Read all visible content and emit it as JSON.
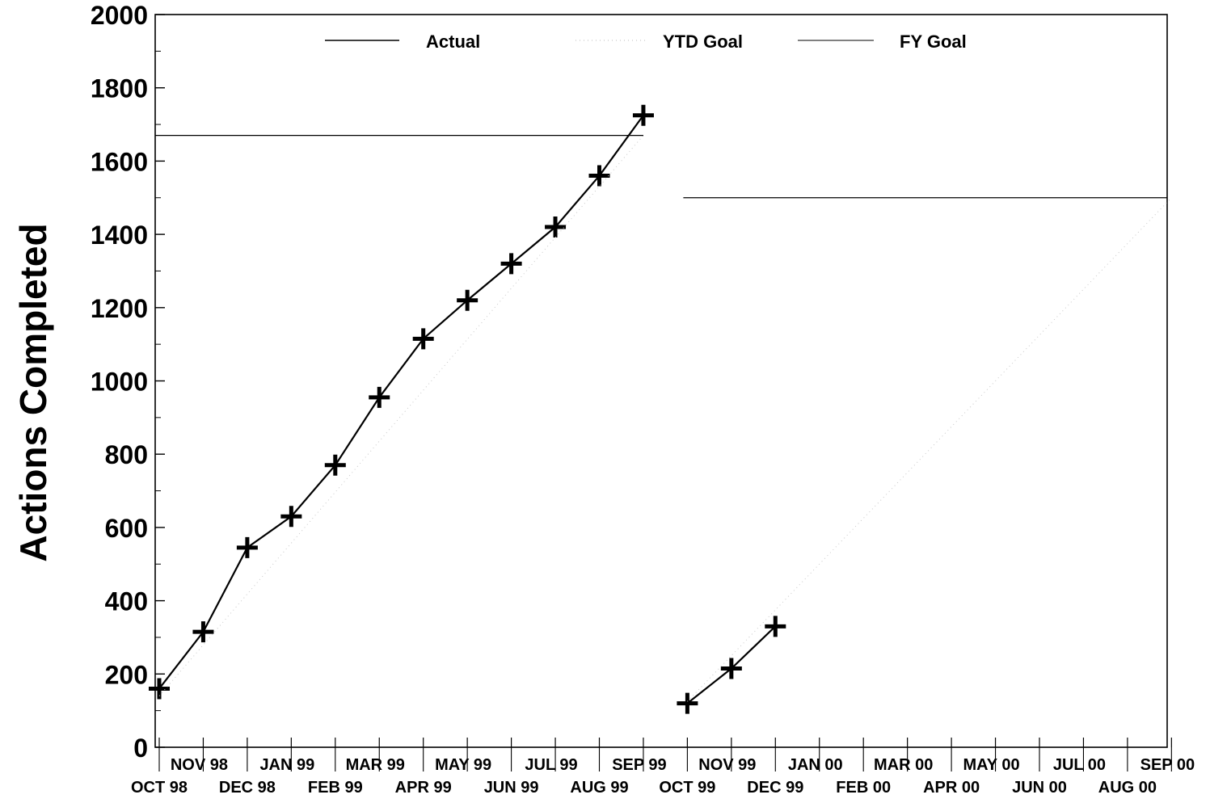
{
  "chart_data": {
    "type": "line",
    "xlabel": "",
    "ylabel": "Actions Completed",
    "ylim": [
      0,
      2000
    ],
    "yticks": [
      0,
      200,
      400,
      600,
      800,
      1000,
      1200,
      1400,
      1600,
      1800,
      2000
    ],
    "categories": [
      "OCT 98",
      "NOV 98",
      "DEC 98",
      "JAN 99",
      "FEB 99",
      "MAR 99",
      "APR 99",
      "MAY 99",
      "JUN 99",
      "JUL 99",
      "AUG 99",
      "SEP 99",
      "OCT 99",
      "NOV 99",
      "DEC 99",
      "JAN 00",
      "FEB 00",
      "MAR 00",
      "APR 00",
      "MAY 00",
      "JUN 00",
      "JUL 00",
      "AUG 00",
      "SEP 00"
    ],
    "legend": [
      "Actual",
      "YTD Goal",
      "FY Goal"
    ],
    "legend_position": "top",
    "grid": false,
    "series": [
      {
        "name": "Actual",
        "segments": [
          {
            "x": [
              "OCT 98",
              "NOV 98",
              "DEC 98",
              "JAN 99",
              "FEB 99",
              "MAR 99",
              "APR 99",
              "MAY 99",
              "JUN 99",
              "JUL 99",
              "AUG 99",
              "SEP 99"
            ],
            "values": [
              160,
              315,
              545,
              630,
              770,
              955,
              1115,
              1220,
              1320,
              1420,
              1560,
              1725
            ]
          },
          {
            "x": [
              "OCT 99",
              "NOV 99",
              "DEC 99"
            ],
            "values": [
              120,
              215,
              330
            ]
          }
        ]
      },
      {
        "name": "YTD Goal",
        "segments": [
          {
            "x": [
              "OCT 98",
              "SEP 99"
            ],
            "values": [
              140,
              1670
            ]
          },
          {
            "x": [
              "OCT 99",
              "SEP 00"
            ],
            "values": [
              125,
              1500
            ]
          }
        ]
      },
      {
        "name": "FY Goal",
        "segments": [
          {
            "x": [
              "OCT 98",
              "SEP 99"
            ],
            "values": [
              1670,
              1670
            ]
          },
          {
            "x": [
              "OCT 99",
              "SEP 00"
            ],
            "values": [
              1500,
              1500
            ]
          }
        ]
      }
    ]
  }
}
